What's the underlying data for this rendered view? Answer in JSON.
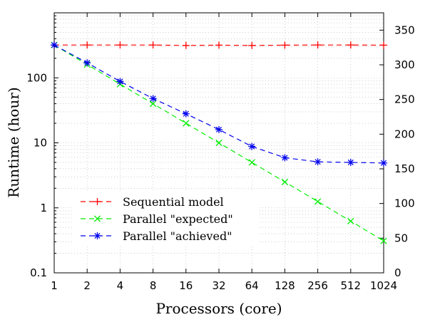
{
  "chart_data": {
    "type": "line",
    "xlabel": "Processors (core)",
    "ylabel": "Runtime (hour)",
    "x_scale": "log2",
    "y_scale": "log10",
    "categories": [
      "1",
      "2",
      "4",
      "8",
      "16",
      "32",
      "64",
      "128",
      "256",
      "512",
      "1024"
    ],
    "x": [
      1,
      2,
      4,
      8,
      16,
      32,
      64,
      128,
      256,
      512,
      1024
    ],
    "xlim": [
      1,
      1024
    ],
    "ylim": [
      0.1,
      1000
    ],
    "yticks": [
      0.1,
      1,
      10,
      100
    ],
    "ytick_labels": [
      "0.1",
      "1",
      "10",
      "100"
    ],
    "y2lim": [
      0,
      375
    ],
    "y2ticks": [
      0,
      50,
      100,
      150,
      200,
      250,
      300,
      350
    ],
    "y2tick_labels": [
      "0",
      "50",
      "100",
      "150",
      "200",
      "250",
      "300",
      "350"
    ],
    "grid": true,
    "legend_position": "lower-left",
    "series": [
      {
        "name": "Sequential model",
        "color": "#ff0000",
        "marker": "plus",
        "values": [
          320,
          320,
          320,
          320,
          315,
          318,
          315,
          318,
          320,
          320,
          318
        ]
      },
      {
        "name": "Parallel \"expected\"",
        "color": "#00ee00",
        "marker": "x",
        "values": [
          320,
          160,
          80,
          40,
          20,
          10,
          5,
          2.5,
          1.25,
          0.625,
          0.31
        ]
      },
      {
        "name": "Parallel \"achieved\"",
        "color": "#0000ee",
        "marker": "star",
        "values": [
          320,
          170,
          88,
          48,
          28,
          16,
          8.8,
          5.9,
          5.1,
          5.0,
          4.9
        ]
      }
    ]
  }
}
